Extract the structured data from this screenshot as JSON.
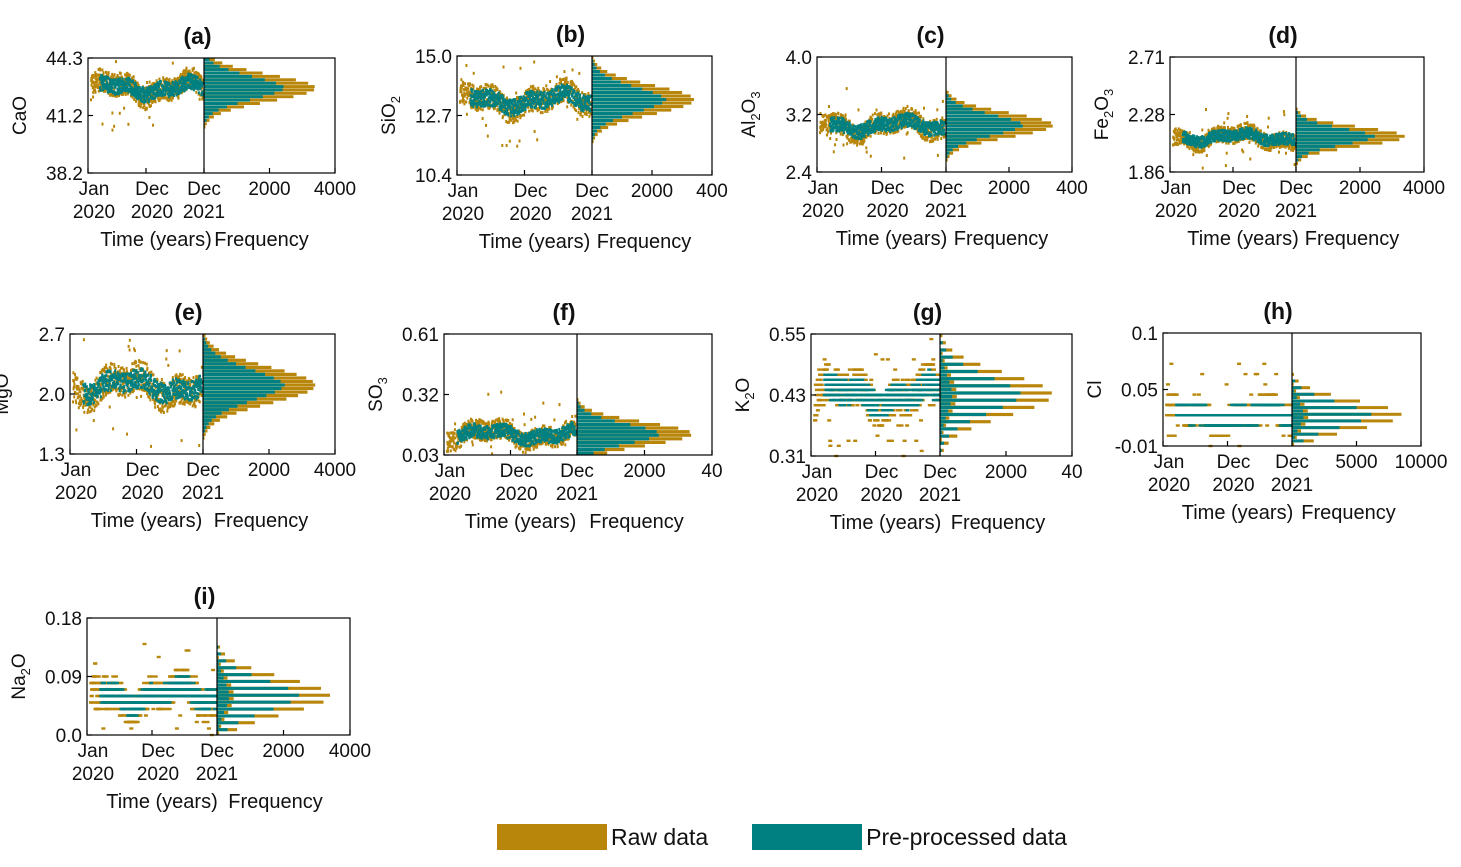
{
  "colors": {
    "raw": "#B8860B",
    "pre": "#008080",
    "axis": "#000000"
  },
  "legend": {
    "raw_label": "Raw data",
    "pre_label": "Pre-processed data"
  },
  "chart_data": [
    {
      "id": "a",
      "title": "(a)",
      "type": "scatter",
      "ylabel": "CaO",
      "xlabel": "Time (years)",
      "hist_xlabel": "Frequency",
      "yticks": [
        "44.3",
        "41.2",
        "38.2"
      ],
      "ylim": [
        38.2,
        44.3
      ],
      "x_tick_top": [
        "Jan",
        "Dec",
        "Dec"
      ],
      "x_tick_bottom": [
        "2020",
        "2020",
        "2021"
      ],
      "hist_ticks": [
        "2000",
        "4000"
      ],
      "hist_max": 4000,
      "center": 42.7,
      "spread": 0.5,
      "quant": 0
    },
    {
      "id": "b",
      "title": "(b)",
      "type": "scatter",
      "ylabel": "SiO",
      "ysub": "2",
      "xlabel": "Time (years)",
      "hist_xlabel": "Frequency",
      "yticks": [
        "15.0",
        "12.7",
        "10.4"
      ],
      "ylim": [
        10.4,
        15.0
      ],
      "x_tick_top": [
        "Jan",
        "Dec",
        "Dec"
      ],
      "x_tick_bottom": [
        "2020",
        "2020",
        "2021"
      ],
      "hist_ticks": [
        "2000",
        "400"
      ],
      "hist_max": 4000,
      "center": 13.3,
      "spread": 0.4,
      "quant": 0
    },
    {
      "id": "c",
      "title": "(c)",
      "type": "scatter",
      "ylabel": "Al",
      "ysub": "2",
      "ylabel2": "O",
      "ysub2": "3",
      "xlabel": "Time (years)",
      "hist_xlabel": "Frequency",
      "yticks": [
        "4.0",
        "3.2",
        "2.4"
      ],
      "ylim": [
        2.4,
        4.0
      ],
      "x_tick_top": [
        "Jan",
        "Dec",
        "Dec"
      ],
      "x_tick_bottom": [
        "2020",
        "2020",
        "2021"
      ],
      "hist_ticks": [
        "2000",
        "400"
      ],
      "hist_max": 4000,
      "center": 3.05,
      "spread": 0.12,
      "quant": 0
    },
    {
      "id": "d",
      "title": "(d)",
      "type": "scatter",
      "ylabel": "Fe",
      "ysub": "2",
      "ylabel2": "O",
      "ysub2": "3",
      "xlabel": "Time (years)",
      "hist_xlabel": "Frequency",
      "yticks": [
        "2.71",
        "2.28",
        "1.86"
      ],
      "ylim": [
        1.86,
        2.71
      ],
      "x_tick_top": [
        "Jan",
        "Dec",
        "Dec"
      ],
      "x_tick_bottom": [
        "2020",
        "2020",
        "2021"
      ],
      "hist_ticks": [
        "2000",
        "4000"
      ],
      "hist_max": 4000,
      "center": 2.12,
      "spread": 0.05,
      "quant": 0
    },
    {
      "id": "e",
      "title": "(e)",
      "type": "scatter",
      "ylabel": "MgO",
      "xlabel": "Time (years)",
      "hist_xlabel": "Frequency",
      "yticks": [
        "2.7",
        "2.0",
        "1.3"
      ],
      "ylim": [
        1.3,
        2.7
      ],
      "x_tick_top": [
        "Jan",
        "Dec",
        "Dec"
      ],
      "x_tick_bottom": [
        "2020",
        "2020",
        "2021"
      ],
      "hist_ticks": [
        "2000",
        "4000"
      ],
      "hist_max": 4000,
      "center": 2.1,
      "spread": 0.15,
      "quant": 0
    },
    {
      "id": "f",
      "title": "(f)",
      "type": "scatter",
      "ylabel": "SO",
      "ysub": "3",
      "xlabel": "Time (years)",
      "hist_xlabel": "Frequency",
      "yticks": [
        "0.61",
        "0.32",
        "0.03"
      ],
      "ylim": [
        0.03,
        0.61
      ],
      "x_tick_top": [
        "Jan",
        "Dec",
        "Dec"
      ],
      "x_tick_bottom": [
        "2020",
        "2020",
        "2021"
      ],
      "hist_ticks": [
        "2000",
        "40"
      ],
      "hist_max": 4000,
      "center": 0.13,
      "spread": 0.04,
      "quant": 0
    },
    {
      "id": "g",
      "title": "(g)",
      "type": "scatter",
      "ylabel": "K",
      "ysub": "2",
      "ylabel2": "O",
      "xlabel": "Time (years)",
      "hist_xlabel": "Frequency",
      "yticks": [
        "0.55",
        "0.43",
        "0.31"
      ],
      "ylim": [
        0.31,
        0.55
      ],
      "x_tick_top": [
        "Jan",
        "Dec",
        "Dec"
      ],
      "x_tick_bottom": [
        "2020",
        "2020",
        "2021"
      ],
      "hist_ticks": [
        "2000",
        "40"
      ],
      "hist_max": 4000,
      "center": 0.43,
      "spread": 0.03,
      "quant": 0.01
    },
    {
      "id": "h",
      "title": "(h)",
      "type": "scatter",
      "ylabel": "Cl",
      "xlabel": "Time (years)",
      "hist_xlabel": "Frequency",
      "yticks": [
        "0.1",
        "0.05",
        "-0.01"
      ],
      "ylim": [
        -0.01,
        0.1
      ],
      "x_tick_top": [
        "Jan",
        "Dec",
        "Dec"
      ],
      "x_tick_bottom": [
        "2020",
        "2020",
        "2021"
      ],
      "hist_ticks": [
        "5000",
        "10000"
      ],
      "hist_max": 10000,
      "center": 0.02,
      "spread": 0.01,
      "quant": 0.01
    },
    {
      "id": "i",
      "title": "(i)",
      "type": "scatter",
      "ylabel": "Na",
      "ysub": "2",
      "ylabel2": "O",
      "xlabel": "Time (years)",
      "hist_xlabel": "Frequency",
      "yticks": [
        "0.18",
        "0.09",
        "0.0"
      ],
      "ylim": [
        0.0,
        0.18
      ],
      "x_tick_top": [
        "Jan",
        "Dec",
        "Dec"
      ],
      "x_tick_bottom": [
        "2020",
        "2020",
        "2021"
      ],
      "hist_ticks": [
        "2000",
        "4000"
      ],
      "hist_max": 4000,
      "center": 0.06,
      "spread": 0.02,
      "quant": 0.01
    }
  ]
}
